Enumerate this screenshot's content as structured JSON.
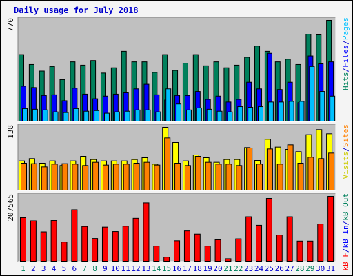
{
  "title": "Daily usage for July 2018",
  "colors": {
    "hits": "#00805c",
    "files": "#0000ff",
    "pages": "#00c0ff",
    "visits": "#ffff00",
    "sites": "#ff8000",
    "kbf": "#ff0000",
    "kbin": "#0000ff",
    "kbout": "#00805c",
    "weekend_label": "#00805c",
    "weekday_label": "#0000cc",
    "panel_bg": "#c0c0c0",
    "frame_bg": "#f4f4f4"
  },
  "chart_data": [
    {
      "type": "bar",
      "panel": "hits-files-pages",
      "ymax_label": "770",
      "ylim": [
        0,
        770
      ],
      "legend": [
        {
          "label": "Hits",
          "color": "#00805c"
        },
        {
          "label": "/",
          "color": "#0000cc"
        },
        {
          "label": "Files",
          "color": "#0000ff"
        },
        {
          "label": "/",
          "color": "#0000cc"
        },
        {
          "label": "Pages",
          "color": "#00c0ff"
        }
      ],
      "x": [
        "1",
        "2",
        "3",
        "4",
        "5",
        "6",
        "7",
        "8",
        "9",
        "10",
        "11",
        "12",
        "13",
        "14",
        "15",
        "16",
        "17",
        "18",
        "19",
        "20",
        "21",
        "22",
        "23",
        "24",
        "25",
        "26",
        "27",
        "28",
        "29",
        "30",
        "31"
      ],
      "series": [
        {
          "name": "Hits",
          "color": "#00805c",
          "values": [
            510,
            435,
            385,
            420,
            320,
            455,
            430,
            465,
            370,
            410,
            535,
            455,
            455,
            375,
            510,
            390,
            445,
            510,
            425,
            455,
            410,
            430,
            490,
            575,
            535,
            455,
            475,
            435,
            665,
            660,
            770
          ]
        },
        {
          "name": "Files",
          "color": "#0000ff",
          "values": [
            270,
            260,
            200,
            205,
            160,
            255,
            210,
            175,
            195,
            210,
            220,
            250,
            285,
            205,
            165,
            200,
            200,
            230,
            170,
            195,
            150,
            170,
            300,
            250,
            520,
            245,
            300,
            145,
            500,
            440,
            455
          ]
        },
        {
          "name": "Pages",
          "color": "#00c0ff",
          "values": [
            100,
            95,
            90,
            75,
            70,
            100,
            80,
            85,
            65,
            75,
            80,
            90,
            90,
            75,
            250,
            135,
            90,
            105,
            95,
            80,
            75,
            115,
            110,
            115,
            150,
            150,
            155,
            155,
            420,
            230,
            195
          ]
        }
      ]
    },
    {
      "type": "bar",
      "panel": "visits-sites",
      "ymax_label": "138",
      "ylim": [
        0,
        138
      ],
      "legend": [
        {
          "label": "Visits",
          "color": "#cccc00"
        },
        {
          "label": "/",
          "color": "#0000cc"
        },
        {
          "label": "Sites",
          "color": "#ff8000"
        }
      ],
      "x": [
        "1",
        "2",
        "3",
        "4",
        "5",
        "6",
        "7",
        "8",
        "9",
        "10",
        "11",
        "12",
        "13",
        "14",
        "15",
        "16",
        "17",
        "18",
        "19",
        "20",
        "21",
        "22",
        "23",
        "24",
        "25",
        "26",
        "27",
        "28",
        "29",
        "30",
        "31"
      ],
      "series": [
        {
          "name": "Visits",
          "color": "#ffff00",
          "values": [
            65,
            70,
            60,
            65,
            55,
            65,
            75,
            68,
            65,
            65,
            65,
            68,
            72,
            58,
            138,
            105,
            65,
            78,
            72,
            62,
            68,
            68,
            94,
            66,
            112,
            95,
            90,
            85,
            122,
            133,
            124
          ]
        },
        {
          "name": "Sites",
          "color": "#ff8000",
          "values": [
            60,
            59,
            52,
            58,
            59,
            58,
            55,
            62,
            56,
            58,
            58,
            60,
            62,
            56,
            115,
            60,
            55,
            75,
            62,
            58,
            58,
            55,
            93,
            58,
            91,
            58,
            100,
            60,
            73,
            70,
            82
          ]
        }
      ]
    },
    {
      "type": "bar",
      "panel": "kb",
      "ymax_label": "207565",
      "ylim": [
        0,
        207565
      ],
      "legend": [
        {
          "label": "kB F",
          "color": "#ff0000"
        },
        {
          "label": "/",
          "color": "#0000cc"
        },
        {
          "label": "kB In",
          "color": "#0000ff"
        },
        {
          "label": "/",
          "color": "#0000cc"
        },
        {
          "label": "kB Out",
          "color": "#00805c"
        }
      ],
      "x": [
        "1",
        "2",
        "3",
        "4",
        "5",
        "6",
        "7",
        "8",
        "9",
        "10",
        "11",
        "12",
        "13",
        "14",
        "15",
        "16",
        "17",
        "18",
        "19",
        "20",
        "21",
        "22",
        "23",
        "24",
        "25",
        "26",
        "27",
        "28",
        "29",
        "30",
        "31"
      ],
      "series": [
        {
          "name": "kB F",
          "color": "#ff0000",
          "values": [
            140000,
            130000,
            95000,
            131000,
            63000,
            165000,
            112000,
            74000,
            110000,
            96000,
            113000,
            138000,
            187000,
            50000,
            15000,
            67000,
            98000,
            88000,
            50000,
            70000,
            10000,
            73000,
            143000,
            116000,
            201000,
            85000,
            143000,
            66000,
            66000,
            120000,
            210000
          ]
        }
      ]
    }
  ],
  "x_axis": {
    "labels": [
      {
        "text": "1",
        "weekend": true
      },
      {
        "text": "2",
        "weekend": false
      },
      {
        "text": "3",
        "weekend": false
      },
      {
        "text": "4",
        "weekend": false
      },
      {
        "text": "5",
        "weekend": false
      },
      {
        "text": "6",
        "weekend": false
      },
      {
        "text": "7",
        "weekend": true
      },
      {
        "text": "8",
        "weekend": true
      },
      {
        "text": "9",
        "weekend": false
      },
      {
        "text": "10",
        "weekend": false
      },
      {
        "text": "11",
        "weekend": false
      },
      {
        "text": "12",
        "weekend": false
      },
      {
        "text": "13",
        "weekend": false
      },
      {
        "text": "14",
        "weekend": true
      },
      {
        "text": "15",
        "weekend": true
      },
      {
        "text": "16",
        "weekend": false
      },
      {
        "text": "17",
        "weekend": false
      },
      {
        "text": "18",
        "weekend": false
      },
      {
        "text": "19",
        "weekend": false
      },
      {
        "text": "20",
        "weekend": false
      },
      {
        "text": "21",
        "weekend": true
      },
      {
        "text": "22",
        "weekend": true
      },
      {
        "text": "23",
        "weekend": false
      },
      {
        "text": "24",
        "weekend": false
      },
      {
        "text": "25",
        "weekend": false
      },
      {
        "text": "26",
        "weekend": false
      },
      {
        "text": "27",
        "weekend": false
      },
      {
        "text": "28",
        "weekend": true
      },
      {
        "text": "29",
        "weekend": true
      },
      {
        "text": "30",
        "weekend": false
      },
      {
        "text": "31",
        "weekend": false
      }
    ]
  }
}
